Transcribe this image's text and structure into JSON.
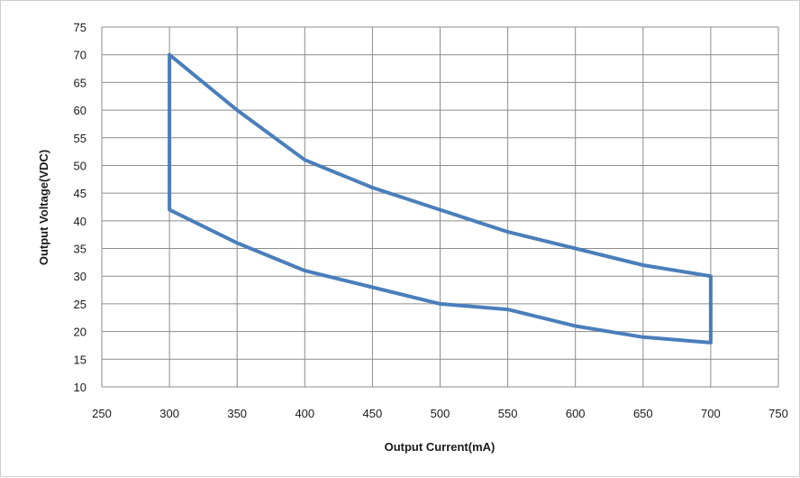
{
  "chart_data": {
    "type": "line",
    "title": "",
    "xlabel": "Output Current(mA)",
    "ylabel": "Output Voltage(VDC)",
    "xlim": [
      250,
      750
    ],
    "ylim": [
      10,
      75
    ],
    "x_ticks": [
      250,
      300,
      350,
      400,
      450,
      500,
      550,
      600,
      650,
      700,
      750
    ],
    "y_ticks": [
      10,
      15,
      20,
      25,
      30,
      35,
      40,
      45,
      50,
      55,
      60,
      65,
      70,
      75
    ],
    "x_tick_labels": [
      "250",
      "300",
      "350",
      "400",
      "450",
      "500",
      "550",
      "600",
      "650",
      "700",
      "750"
    ],
    "y_tick_labels": [
      "10",
      "15",
      "20",
      "25",
      "30",
      "35",
      "40",
      "45",
      "50",
      "55",
      "60",
      "65",
      "70",
      "75"
    ],
    "grid": true,
    "legend": "none",
    "series": [
      {
        "color": "#4a7ebb",
        "closed": true,
        "points": [
          [
            300,
            70
          ],
          [
            350,
            60
          ],
          [
            400,
            51
          ],
          [
            450,
            46
          ],
          [
            500,
            42
          ],
          [
            550,
            38
          ],
          [
            600,
            35
          ],
          [
            650,
            32
          ],
          [
            700,
            30
          ],
          [
            700,
            18
          ],
          [
            650,
            19
          ],
          [
            600,
            21
          ],
          [
            550,
            24
          ],
          [
            500,
            25
          ],
          [
            450,
            28
          ],
          [
            400,
            31
          ],
          [
            350,
            36
          ],
          [
            300,
            42
          ],
          [
            300,
            70
          ]
        ]
      }
    ]
  }
}
